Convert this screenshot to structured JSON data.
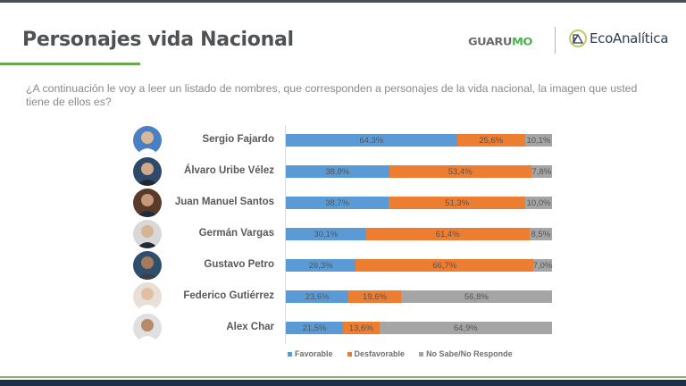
{
  "header": {
    "title": "Personajes vida Nacional",
    "logo_guarumo_a": "GUARU",
    "logo_guarumo_b": "MO",
    "logo_eco": "EcoAnalítica"
  },
  "question": "¿A continuación le voy a leer un listado de nombres, que corresponden a personajes de la vida nacional, la imagen que usted tiene de ellos es?",
  "colors": {
    "favorable": "#5b9bd5",
    "desfavorable": "#ed7d31",
    "no_sabe": "#a5a5a5"
  },
  "chart_data": {
    "type": "bar",
    "orientation": "horizontal",
    "stacked": true,
    "title": "",
    "xlabel": "",
    "ylabel": "",
    "xlim": [
      0,
      100
    ],
    "grid": false,
    "legend_position": "bottom",
    "categories": [
      "Sergio Fajardo",
      "Álvaro Uribe Vélez",
      "Juan Manuel Santos",
      "Germán Vargas",
      "Gustavo Petro",
      "Federico Gutiérrez",
      "Alex Char"
    ],
    "series": [
      {
        "name": "Favorable",
        "values": [
          64.3,
          38.8,
          38.7,
          30.1,
          26.3,
          23.6,
          21.5
        ],
        "labels": [
          "64,3%",
          "38,8%",
          "38,7%",
          "30,1%",
          "26,3%",
          "23,6%",
          "21,5%"
        ]
      },
      {
        "name": "Desfavorable",
        "values": [
          25.6,
          53.4,
          51.3,
          61.4,
          66.7,
          19.6,
          13.6
        ],
        "labels": [
          "25,6%",
          "53,4%",
          "51,3%",
          "61,4%",
          "66,7%",
          "19,6%",
          "13,6%"
        ]
      },
      {
        "name": "No Sabe/No Responde",
        "values": [
          10.1,
          7.8,
          10.0,
          8.5,
          7.0,
          56.8,
          64.9
        ],
        "labels": [
          "10,1%",
          "7,8%",
          "10,0%",
          "8,5%",
          "7,0%",
          "56,8%",
          "64,9%"
        ]
      }
    ]
  }
}
